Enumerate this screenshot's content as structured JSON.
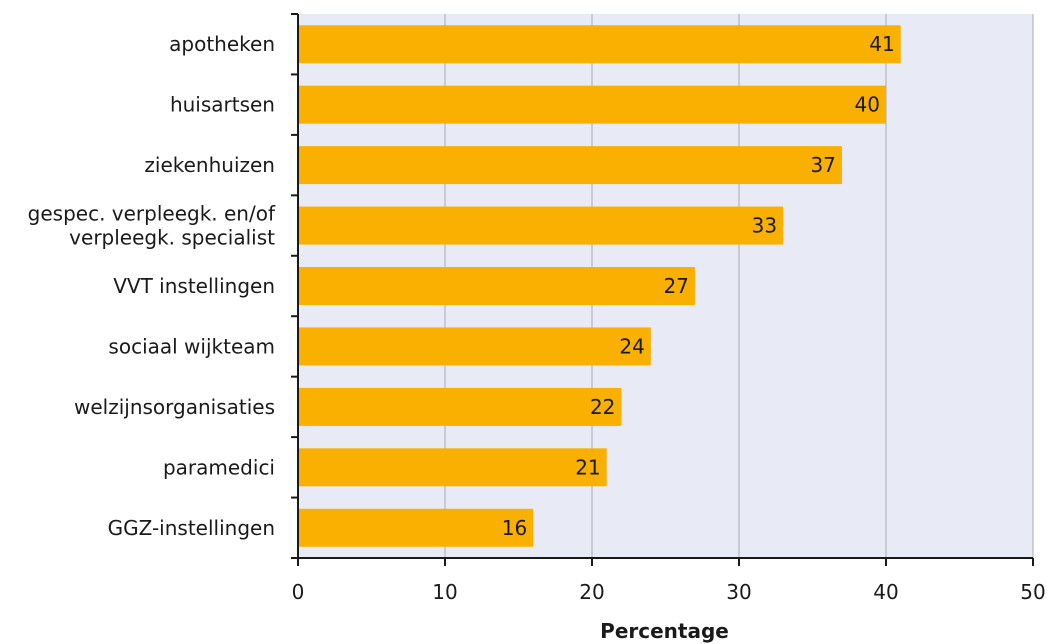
{
  "chart_data": {
    "type": "bar",
    "orientation": "horizontal",
    "categories": [
      [
        "apotheken"
      ],
      [
        "huisartsen"
      ],
      [
        "ziekenhuizen"
      ],
      [
        "gespec. verpleegk. en/of",
        "verpleegk. specialist"
      ],
      [
        "VVT instellingen"
      ],
      [
        "sociaal wijkteam"
      ],
      [
        "welzijnsorganisaties"
      ],
      [
        "paramedici"
      ],
      [
        "GGZ-instellingen"
      ]
    ],
    "values": [
      41,
      40,
      37,
      33,
      27,
      24,
      22,
      21,
      16
    ],
    "value_labels": [
      "41",
      "40",
      "37",
      "33",
      "27",
      "24",
      "22",
      "21",
      "16"
    ],
    "xlabel": "Percentage",
    "xlim": [
      0,
      50
    ],
    "xticks": [
      "0",
      "10",
      "20",
      "30",
      "40",
      "50"
    ],
    "grid": true,
    "colors": {
      "bar": "#f9b000",
      "plot_background": "#e8ebf5",
      "gridline": "#a9abb3",
      "axis": "#1a1a1a"
    }
  }
}
